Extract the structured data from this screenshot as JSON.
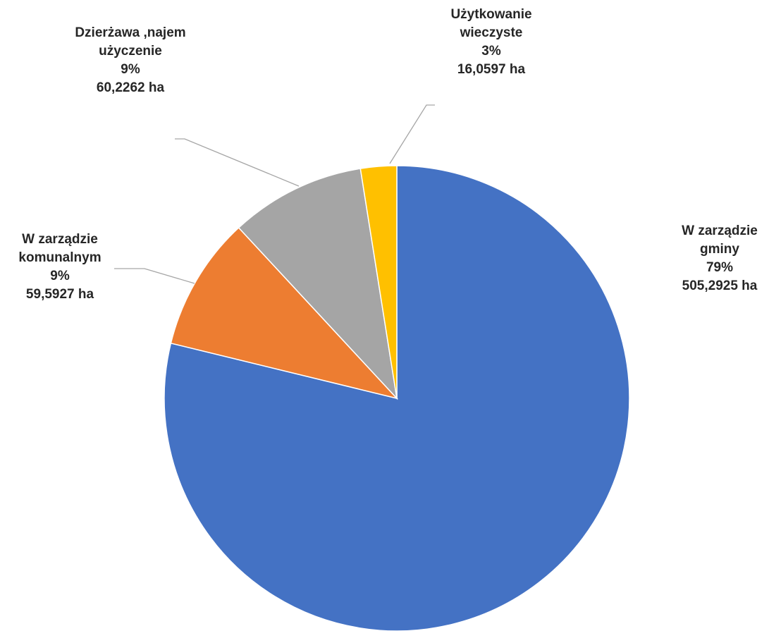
{
  "chart_data": {
    "type": "pie",
    "start_angle_deg": 0,
    "direction": "clockwise",
    "slices": [
      {
        "name_lines": [
          "W zarządzie",
          "gminy"
        ],
        "percent_label": "79%",
        "area_label": "505,2925 ha",
        "value": 505.2925,
        "color": "#4472c4"
      },
      {
        "name_lines": [
          "W zarządzie",
          "komunalnym"
        ],
        "percent_label": "9%",
        "area_label": "59,5927 ha",
        "value": 59.5927,
        "color": "#ed7d31"
      },
      {
        "name_lines": [
          "Dzierżawa ,najem",
          "użyczenie"
        ],
        "percent_label": "9%",
        "area_label": "60,2262 ha",
        "value": 60.2262,
        "color": "#a5a5a5"
      },
      {
        "name_lines": [
          "Użytkowanie",
          "wieczyste"
        ],
        "percent_label": "3%",
        "area_label": "16,0597 ha",
        "value": 16.0597,
        "color": "#ffc000"
      }
    ]
  }
}
